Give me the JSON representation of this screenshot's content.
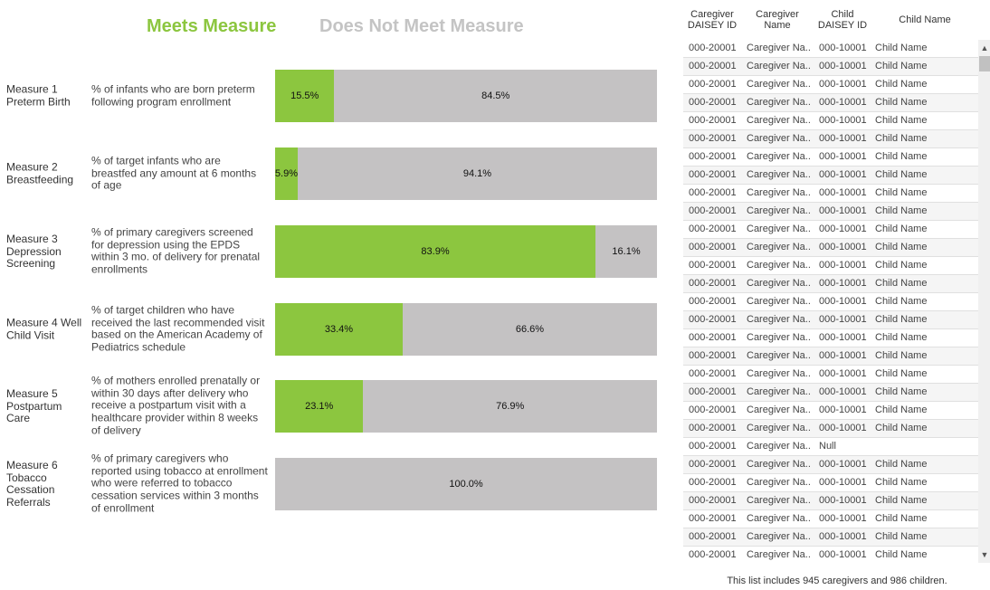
{
  "legend": {
    "meets": "Meets Measure",
    "not_meets": "Does Not Meet Measure",
    "meets_color": "#8cc63f",
    "not_meets_color": "#c4c2c3"
  },
  "measures": [
    {
      "title": "Measure 1 Preterm Birth",
      "desc": "% of infants who are born preterm following program enrollment",
      "meets": 15.5,
      "not_meets": 84.5,
      "meets_label": "15.5%",
      "not_meets_label": "84.5%"
    },
    {
      "title": "Measure 2 Breastfeeding",
      "desc": "% of target infants who are breastfed any amount at 6 months of age",
      "meets": 5.9,
      "not_meets": 94.1,
      "meets_label": "5.9%",
      "not_meets_label": "94.1%"
    },
    {
      "title": "Measure 3 Depression Screening",
      "desc": "% of primary caregivers screened for depression using the EPDS within 3 mo. of delivery for  prenatal enrollments",
      "meets": 83.9,
      "not_meets": 16.1,
      "meets_label": "83.9%",
      "not_meets_label": "16.1%"
    },
    {
      "title": "Measure 4 Well Child Visit",
      "desc": "% of target children who have received the last recommended visit based on the American Academy of Pediatrics schedule",
      "meets": 33.4,
      "not_meets": 66.6,
      "meets_label": "33.4%",
      "not_meets_label": "66.6%"
    },
    {
      "title": "Measure 5 Postpartum Care",
      "desc": "% of mothers enrolled prenatally or within 30 days after delivery who receive a postpartum visit with a healthcare provider within 8 weeks of delivery",
      "meets": 23.1,
      "not_meets": 76.9,
      "meets_label": "23.1%",
      "not_meets_label": "76.9%"
    },
    {
      "title": "Measure 6 Tobacco Cessation Referrals",
      "desc": "% of primary caregivers who reported using tobacco at enrollment who were referred to tobacco cessation services within 3 months of enrollment",
      "meets": 0,
      "not_meets": 100,
      "meets_label": "",
      "not_meets_label": "100.0%"
    }
  ],
  "table": {
    "headers": [
      "Caregiver DAISEY ID",
      "Caregiver Name",
      "Child DAISEY ID",
      "Child Name"
    ],
    "rows": [
      [
        "000-20001",
        "Caregiver Na..",
        "000-10001",
        "Child Name"
      ],
      [
        "000-20001",
        "Caregiver Na..",
        "000-10001",
        "Child Name"
      ],
      [
        "000-20001",
        "Caregiver Na..",
        "000-10001",
        "Child Name"
      ],
      [
        "000-20001",
        "Caregiver Na..",
        "000-10001",
        "Child Name"
      ],
      [
        "000-20001",
        "Caregiver Na..",
        "000-10001",
        "Child Name"
      ],
      [
        "000-20001",
        "Caregiver Na..",
        "000-10001",
        "Child Name"
      ],
      [
        "000-20001",
        "Caregiver Na..",
        "000-10001",
        "Child Name"
      ],
      [
        "000-20001",
        "Caregiver Na..",
        "000-10001",
        "Child Name"
      ],
      [
        "000-20001",
        "Caregiver Na..",
        "000-10001",
        "Child Name"
      ],
      [
        "000-20001",
        "Caregiver Na..",
        "000-10001",
        "Child Name"
      ],
      [
        "000-20001",
        "Caregiver Na..",
        "000-10001",
        "Child Name"
      ],
      [
        "000-20001",
        "Caregiver Na..",
        "000-10001",
        "Child Name"
      ],
      [
        "000-20001",
        "Caregiver Na..",
        "000-10001",
        "Child Name"
      ],
      [
        "000-20001",
        "Caregiver Na..",
        "000-10001",
        "Child Name"
      ],
      [
        "000-20001",
        "Caregiver Na..",
        "000-10001",
        "Child Name"
      ],
      [
        "000-20001",
        "Caregiver Na..",
        "000-10001",
        "Child Name"
      ],
      [
        "000-20001",
        "Caregiver Na..",
        "000-10001",
        "Child Name"
      ],
      [
        "000-20001",
        "Caregiver Na..",
        "000-10001",
        "Child Name"
      ],
      [
        "000-20001",
        "Caregiver Na..",
        "000-10001",
        "Child Name"
      ],
      [
        "000-20001",
        "Caregiver Na..",
        "000-10001",
        "Child Name"
      ],
      [
        "000-20001",
        "Caregiver Na..",
        "000-10001",
        "Child Name"
      ],
      [
        "000-20001",
        "Caregiver Na..",
        "000-10001",
        "Child Name"
      ],
      [
        "000-20001",
        "Caregiver Na..",
        "Null",
        ""
      ],
      [
        "000-20001",
        "Caregiver Na..",
        "000-10001",
        "Child Name"
      ],
      [
        "000-20001",
        "Caregiver Na..",
        "000-10001",
        "Child Name"
      ],
      [
        "000-20001",
        "Caregiver Na..",
        "000-10001",
        "Child Name"
      ],
      [
        "000-20001",
        "Caregiver Na..",
        "000-10001",
        "Child Name"
      ],
      [
        "000-20001",
        "Caregiver Na..",
        "000-10001",
        "Child Name"
      ],
      [
        "000-20001",
        "Caregiver Na..",
        "000-10001",
        "Child Name"
      ]
    ]
  },
  "scrollbar": {
    "up_icon": "▲",
    "down_icon": "▼"
  },
  "footer": "This list includes 945 caregivers and 986 children."
}
